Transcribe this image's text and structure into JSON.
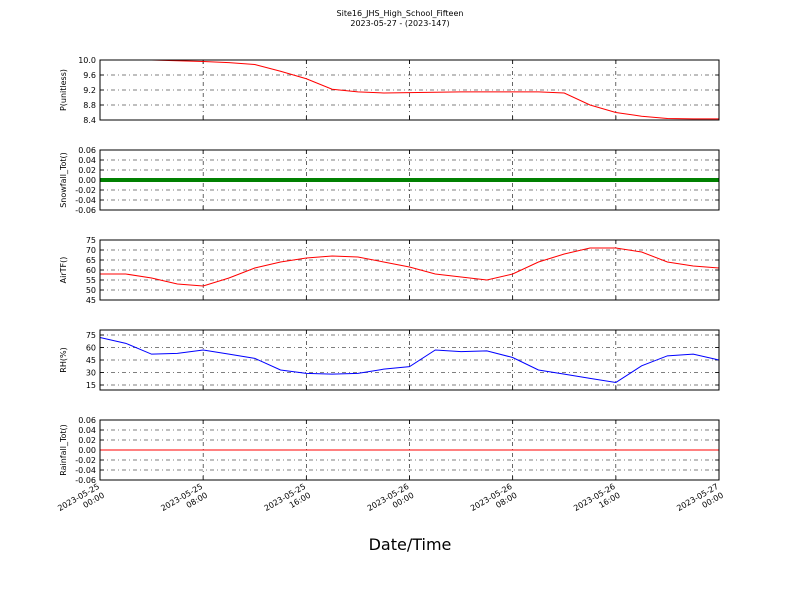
{
  "title": "Site16_JHS_High_School_Fifteen",
  "subtitle": "2023-05-27 - (2023-147)",
  "xlabel": "Date/Time",
  "x": [
    "2023-05-25 00:00",
    "2023-05-25 02:00",
    "2023-05-25 04:00",
    "2023-05-25 06:00",
    "2023-05-25 08:00",
    "2023-05-25 10:00",
    "2023-05-25 12:00",
    "2023-05-25 14:00",
    "2023-05-25 16:00",
    "2023-05-25 18:00",
    "2023-05-25 20:00",
    "2023-05-25 22:00",
    "2023-05-26 00:00",
    "2023-05-26 02:00",
    "2023-05-26 04:00",
    "2023-05-26 06:00",
    "2023-05-26 08:00",
    "2023-05-26 10:00",
    "2023-05-26 12:00",
    "2023-05-26 14:00",
    "2023-05-26 16:00",
    "2023-05-26 18:00",
    "2023-05-26 20:00",
    "2023-05-26 22:00",
    "2023-05-27 00:00"
  ],
  "xlim": [
    "2023-05-25 00:00",
    "2023-05-27 00:00"
  ],
  "xticks": [
    {
      "value": "2023-05-25 00:00",
      "label": [
        "2023-05-25",
        "00:00"
      ]
    },
    {
      "value": "2023-05-25 08:00",
      "label": [
        "2023-05-25",
        "08:00"
      ]
    },
    {
      "value": "2023-05-25 16:00",
      "label": [
        "2023-05-25",
        "16:00"
      ]
    },
    {
      "value": "2023-05-26 00:00",
      "label": [
        "2023-05-26",
        "00:00"
      ]
    },
    {
      "value": "2023-05-26 08:00",
      "label": [
        "2023-05-26",
        "08:00"
      ]
    },
    {
      "value": "2023-05-26 16:00",
      "label": [
        "2023-05-26",
        "16:00"
      ]
    },
    {
      "value": "2023-05-27 00:00",
      "label": [
        "2023-05-27",
        "00:00"
      ]
    }
  ],
  "chart_data": [
    {
      "type": "line",
      "ylabel": "P(unitless)",
      "grid": true,
      "ylim": [
        8.4,
        10
      ],
      "yticks": [
        8.4,
        8.8,
        9.2,
        9.6,
        {
          "value": 10,
          "label": "10.0"
        }
      ],
      "series": [
        {
          "name": "P",
          "color": "#ff0000",
          "width": 1,
          "values": [
            10,
            10,
            10,
            9.98,
            9.96,
            9.93,
            9.88,
            9.7,
            9.5,
            9.22,
            9.15,
            9.12,
            9.13,
            9.14,
            9.15,
            9.15,
            9.15,
            9.15,
            9.12,
            8.8,
            8.6,
            8.5,
            8.44,
            8.43,
            8.43
          ]
        }
      ]
    },
    {
      "type": "line",
      "ylabel": "Snowfall_Tot()",
      "grid": true,
      "ylim": [
        -0.06,
        0.06
      ],
      "yticks": [
        -0.06,
        -0.04,
        -0.02,
        {
          "value": 0,
          "label": "0.00"
        },
        0.02,
        0.04,
        0.06
      ],
      "series": [
        {
          "name": "Snowfall",
          "color": "#008000",
          "width": 4,
          "values": [
            0,
            0,
            0,
            0,
            0,
            0,
            0,
            0,
            0,
            0,
            0,
            0,
            0,
            0,
            0,
            0,
            0,
            0,
            0,
            0,
            0,
            0,
            0,
            0,
            0
          ]
        }
      ]
    },
    {
      "type": "line",
      "ylabel": "AirTF()",
      "grid": true,
      "ylim": [
        45,
        75
      ],
      "yticks": [
        45,
        50,
        55,
        60,
        65,
        70,
        75
      ],
      "series": [
        {
          "name": "AirTF",
          "color": "#ff0000",
          "width": 1,
          "values": [
            58,
            58,
            56,
            53,
            52,
            56,
            61,
            64,
            66,
            67,
            66.5,
            64,
            61.5,
            58,
            56.5,
            55,
            58,
            64,
            68,
            71,
            71,
            69,
            64,
            62,
            61
          ]
        }
      ]
    },
    {
      "type": "line",
      "ylabel": "RH(%)",
      "grid": true,
      "ylim": [
        9,
        81
      ],
      "yticks": [
        15,
        30,
        45,
        60,
        75
      ],
      "series": [
        {
          "name": "RH",
          "color": "#0000ff",
          "width": 1,
          "values": [
            72,
            65,
            52,
            53,
            57,
            52,
            47,
            33,
            29,
            28,
            29,
            34,
            37,
            57,
            55,
            56,
            48,
            33,
            28,
            23,
            18,
            38,
            50,
            52,
            45
          ]
        }
      ]
    },
    {
      "type": "line",
      "ylabel": "Rainfall_Tot()",
      "grid": true,
      "ylim": [
        -0.06,
        0.06
      ],
      "yticks": [
        -0.06,
        -0.04,
        -0.02,
        {
          "value": 0,
          "label": "0.00"
        },
        0.02,
        0.04,
        0.06
      ],
      "series": [
        {
          "name": "Rainfall",
          "color": "#ff0000",
          "width": 1,
          "values": [
            0,
            0,
            0,
            0,
            0,
            0,
            0,
            0,
            0,
            0,
            0,
            0,
            0,
            0,
            0,
            0,
            0,
            0,
            0,
            0,
            0,
            0,
            0,
            0,
            0
          ]
        }
      ]
    }
  ]
}
